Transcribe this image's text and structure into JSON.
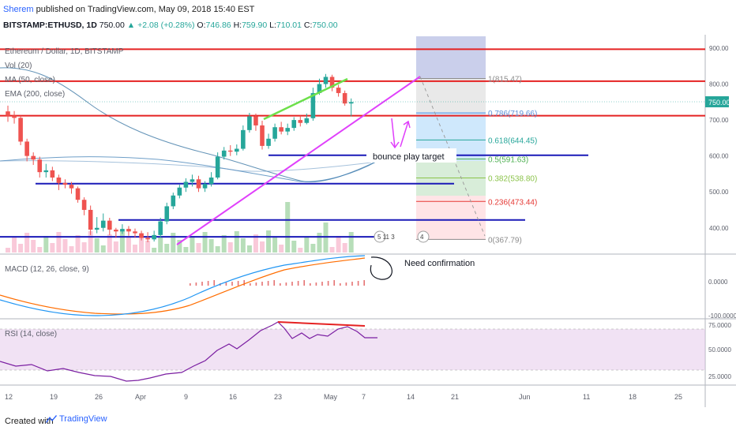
{
  "header": {
    "author": "Sherem",
    "published": "published on TradingView.com, May 09, 2018 15:40 EST",
    "symbol": "BITSTAMP:ETHUSD, 1D",
    "last": "750.00",
    "change": "+2.08 (+0.28%)",
    "open_label": "O:",
    "open": "746.86",
    "high_label": "H:",
    "high": "759.90",
    "low_label": "L:",
    "low": "710.01",
    "close_label": "C:",
    "close": "750.00"
  },
  "legend": {
    "title": "Ethereum / Dollar, 1D, BITSTAMP",
    "vol": "Vol (20)",
    "ma": "MA (50, close)",
    "ema": "EMA (200, close)",
    "macd": "MACD (12, 26, close, 9)",
    "rsi": "RSI (14, close)"
  },
  "annotations": {
    "bounce": "bounce play target",
    "confirm": "Need confirmation",
    "events": "5 11 3",
    "event_4": "4"
  },
  "price_badge": "750.00",
  "price_axis": [
    "900.00",
    "800.00",
    "700.00",
    "600.00",
    "500.00",
    "400.00"
  ],
  "macd_axis": [
    "0.0000",
    "-100.0000"
  ],
  "rsi_axis": [
    "75.0000",
    "50.0000",
    "25.0000"
  ],
  "fib": [
    {
      "label": "1(815.47)",
      "color": "#8c8c8c"
    },
    {
      "label": "0.786(719.66)",
      "color": "#5b8fd8"
    },
    {
      "label": "0.618(644.45)",
      "color": "#26a69a"
    },
    {
      "label": "0.5(591.63)",
      "color": "#4caf50"
    },
    {
      "label": "0.382(538.80)",
      "color": "#8bc34a"
    },
    {
      "label": "0.236(473.44)",
      "color": "#e53935"
    },
    {
      "label": "0(367.79)",
      "color": "#8c8c8c"
    }
  ],
  "time_axis": [
    "12",
    "19",
    "26",
    "Apr",
    "9",
    "16",
    "23",
    "May",
    "7",
    "14",
    "21",
    "Jun",
    "11",
    "18",
    "25"
  ],
  "footer": {
    "created": "Created with",
    "brand": "TradingView"
  },
  "colors": {
    "up": "#26a69a",
    "down": "#ef5350",
    "support": "#1a1ab8",
    "resistance": "#e52222",
    "trend": "#e040fb",
    "macd": "#2196f3",
    "signal": "#ff6d00",
    "rsi": "#7b1fa2"
  },
  "chart_data": {
    "type": "candlestick",
    "title": "Ethereum / Dollar, 1D, BITSTAMP",
    "ylim": [
      340,
      930
    ],
    "horizontal_levels": [
      {
        "price": 897,
        "color": "resistance"
      },
      {
        "price": 808,
        "color": "resistance"
      },
      {
        "price": 712,
        "color": "resistance"
      },
      {
        "price": 602,
        "color": "support"
      },
      {
        "price": 523,
        "color": "support"
      },
      {
        "price": 422,
        "color": "support"
      },
      {
        "price": 375,
        "color": "support"
      }
    ],
    "candles": [
      [
        724,
        712,
        740,
        695
      ],
      [
        712,
        706,
        725,
        690
      ],
      [
        706,
        640,
        712,
        630
      ],
      [
        640,
        600,
        648,
        585
      ],
      [
        600,
        590,
        610,
        575
      ],
      [
        590,
        555,
        598,
        540
      ],
      [
        555,
        560,
        578,
        540
      ],
      [
        560,
        540,
        570,
        530
      ],
      [
        540,
        525,
        548,
        505
      ],
      [
        525,
        520,
        535,
        510
      ],
      [
        520,
        510,
        528,
        495
      ],
      [
        510,
        478,
        515,
        470
      ],
      [
        478,
        450,
        485,
        435
      ],
      [
        450,
        395,
        462,
        380
      ],
      [
        395,
        400,
        430,
        385
      ],
      [
        400,
        420,
        440,
        390
      ],
      [
        420,
        395,
        428,
        380
      ],
      [
        395,
        390,
        400,
        372
      ],
      [
        390,
        397,
        410,
        383
      ],
      [
        397,
        390,
        405,
        378
      ],
      [
        390,
        385,
        398,
        372
      ],
      [
        385,
        372,
        392,
        365
      ],
      [
        372,
        368,
        388,
        360
      ],
      [
        368,
        380,
        392,
        362
      ],
      [
        380,
        418,
        428,
        372
      ],
      [
        418,
        460,
        470,
        410
      ],
      [
        460,
        490,
        498,
        452
      ],
      [
        490,
        512,
        520,
        482
      ],
      [
        512,
        528,
        538,
        500
      ],
      [
        528,
        535,
        548,
        515
      ],
      [
        535,
        510,
        545,
        500
      ],
      [
        510,
        522,
        530,
        500
      ],
      [
        522,
        540,
        555,
        515
      ],
      [
        540,
        598,
        610,
        535
      ],
      [
        598,
        615,
        625,
        590
      ],
      [
        615,
        612,
        630,
        600
      ],
      [
        612,
        620,
        632,
        602
      ],
      [
        620,
        672,
        685,
        615
      ],
      [
        672,
        710,
        720,
        665
      ],
      [
        710,
        685,
        718,
        670
      ],
      [
        685,
        628,
        698,
        618
      ],
      [
        628,
        648,
        662,
        620
      ],
      [
        648,
        680,
        690,
        640
      ],
      [
        680,
        668,
        695,
        660
      ],
      [
        668,
        678,
        690,
        658
      ],
      [
        678,
        700,
        708,
        670
      ],
      [
        700,
        692,
        712,
        682
      ],
      [
        692,
        705,
        718,
        688
      ],
      [
        705,
        775,
        790,
        698
      ],
      [
        775,
        800,
        815,
        770
      ],
      [
        800,
        820,
        828,
        790
      ],
      [
        820,
        790,
        826,
        780
      ],
      [
        790,
        775,
        798,
        765
      ],
      [
        775,
        746,
        782,
        740
      ],
      [
        746,
        750,
        760,
        710
      ]
    ],
    "fib_range": [
      367.79,
      815.47
    ],
    "projection_target": 367.79
  }
}
